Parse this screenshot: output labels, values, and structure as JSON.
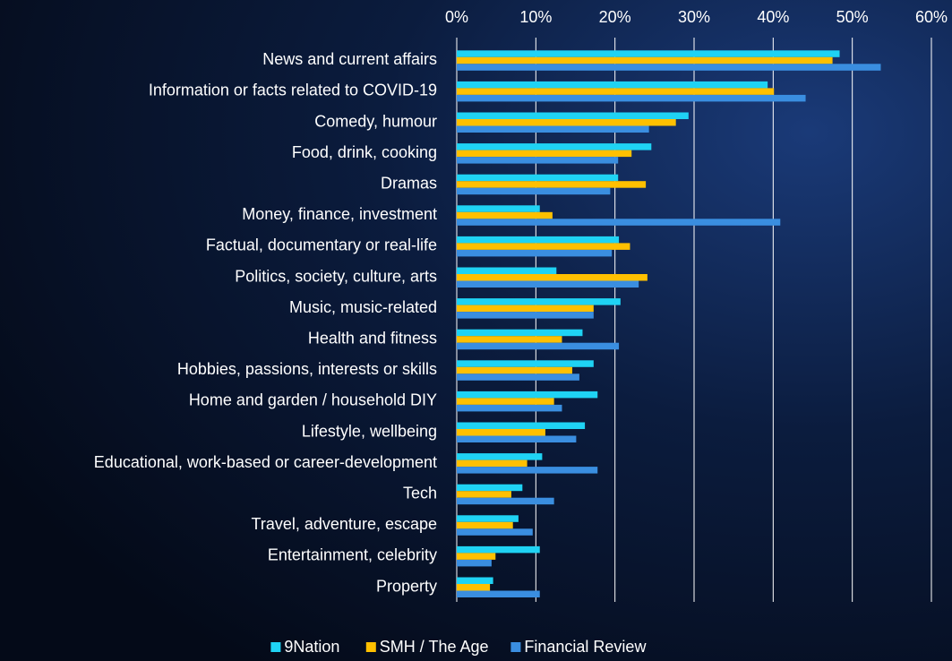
{
  "chart_data": {
    "type": "barh",
    "categories": [
      "News and current affairs",
      "Information or facts related to COVID-19",
      "Comedy, humour",
      "Food, drink, cooking",
      "Dramas",
      "Money, finance, investment",
      "Factual, documentary or real-life",
      "Politics, society, culture, arts",
      "Music, music-related",
      "Health and fitness",
      "Hobbies, passions, interests or skills",
      "Home and garden / household DIY",
      "Lifestyle, wellbeing",
      "Educational, work-based or career-development",
      "Tech",
      "Travel, adventure, escape",
      "Entertainment, celebrity",
      "Property"
    ],
    "series": [
      {
        "name": "9Nation",
        "color": "#1fd3f4",
        "values": [
          48.4,
          39.3,
          29.3,
          24.6,
          20.4,
          10.5,
          20.5,
          12.6,
          20.7,
          15.9,
          17.3,
          17.8,
          16.2,
          10.8,
          8.3,
          7.8,
          10.5,
          4.6
        ]
      },
      {
        "name": "SMH / The Age",
        "color": "#ffc000",
        "values": [
          47.5,
          40.1,
          27.7,
          22.1,
          23.9,
          12.1,
          21.9,
          24.1,
          17.3,
          13.3,
          14.6,
          12.3,
          11.2,
          8.9,
          6.9,
          7.1,
          4.9,
          4.2
        ]
      },
      {
        "name": "Financial Review",
        "color": "#3a8ee0",
        "values": [
          53.6,
          44.1,
          24.3,
          20.4,
          19.4,
          40.9,
          19.6,
          23.0,
          17.3,
          20.5,
          15.5,
          13.3,
          15.1,
          17.8,
          12.3,
          9.6,
          4.4,
          10.5
        ]
      }
    ],
    "xlim": [
      0,
      60
    ],
    "xticks": [
      {
        "value": 0,
        "label": "0%"
      },
      {
        "value": 10,
        "label": "10%"
      },
      {
        "value": 20,
        "label": "20%"
      },
      {
        "value": 30,
        "label": "30%"
      },
      {
        "value": 40,
        "label": "40%"
      },
      {
        "value": 50,
        "label": "50%"
      },
      {
        "value": 60,
        "label": "60%"
      }
    ],
    "grid": true,
    "legend": "bottom"
  }
}
